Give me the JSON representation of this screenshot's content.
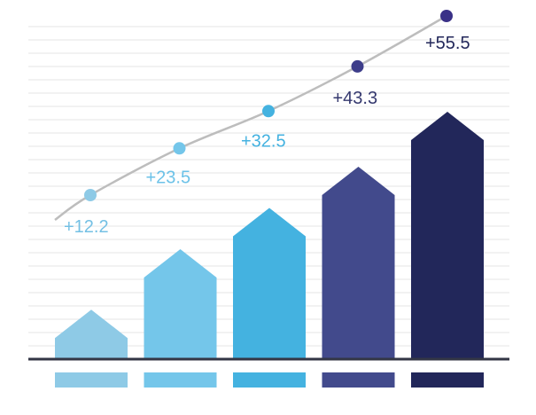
{
  "chart_data": {
    "type": "bar",
    "title": "",
    "xlabel": "",
    "ylabel": "",
    "ylim": [
      0,
      100
    ],
    "grid": true,
    "legend": "none",
    "categories": [
      "",
      "",
      "",
      "",
      ""
    ],
    "values": [
      18,
      40,
      55,
      70,
      90
    ],
    "series": [
      {
        "values": [
          12.2,
          23.5,
          32.5,
          43.3,
          55.5
        ],
        "labels": [
          "+12.2",
          "+23.5",
          "+32.5",
          "+43.3",
          "+55.5"
        ]
      }
    ],
    "colors": {
      "bars": [
        "#8ecae6",
        "#74c6ea",
        "#44b2e0",
        "#424a8c",
        "#22275a"
      ],
      "points": [
        "#8ecae6",
        "#74c6ea",
        "#44b2e0",
        "#3d3d8a",
        "#3a3187"
      ],
      "labels": [
        "#74c0e4",
        "#6cc2e8",
        "#44b2e0",
        "#34386e",
        "#22275a"
      ],
      "trend_line": "#bdbdbd",
      "grid": "#e6e6e6",
      "baseline": "#333645"
    }
  }
}
